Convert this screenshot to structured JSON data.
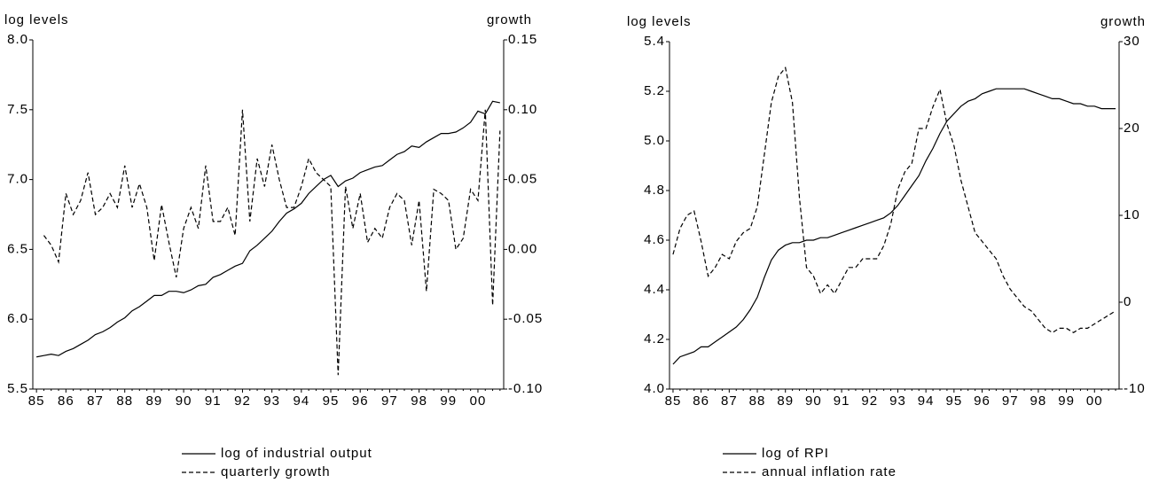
{
  "chart_data": [
    {
      "type": "line",
      "ylabel": "log levels",
      "y2label": "growth",
      "categories": [
        "85",
        null,
        null,
        null,
        "86",
        null,
        null,
        null,
        "87",
        null,
        null,
        null,
        "88",
        null,
        null,
        null,
        "89",
        null,
        null,
        null,
        "90",
        null,
        null,
        null,
        "91",
        null,
        null,
        null,
        "92",
        null,
        null,
        null,
        "93",
        null,
        null,
        null,
        "94",
        null,
        null,
        null,
        "95",
        null,
        null,
        null,
        "96",
        null,
        null,
        null,
        "97",
        null,
        null,
        null,
        "98",
        null,
        null,
        null,
        "99",
        null,
        null,
        null,
        "00",
        null,
        null,
        null
      ],
      "ylim": [
        5.5,
        8.0
      ],
      "yticks": [
        {
          "value": 5.5,
          "label": "5.5"
        },
        {
          "value": 6,
          "label": "6.0"
        },
        {
          "value": 6.5,
          "label": "6.5"
        },
        {
          "value": 7,
          "label": "7.0"
        },
        {
          "value": 7.5,
          "label": "7.5"
        },
        {
          "value": 8,
          "label": "8.0"
        }
      ],
      "y2lim": [
        -0.1,
        0.15
      ],
      "y2ticks": [
        {
          "value": -0.1,
          "label": "-0.10"
        },
        -0.05,
        {
          "value": 0,
          "label": "0.00"
        },
        0.05,
        {
          "value": 0.1,
          "label": "0.10"
        },
        0.15
      ],
      "series": [
        {
          "name": "log of industrial output",
          "color": "#000000",
          "line_style": "solid",
          "values": [
            5.73,
            5.74,
            5.75,
            5.74,
            5.77,
            5.79,
            5.82,
            5.85,
            5.89,
            5.91,
            5.94,
            5.98,
            6.01,
            6.06,
            6.09,
            6.13,
            6.17,
            6.17,
            6.2,
            6.2,
            6.19,
            6.21,
            6.24,
            6.25,
            6.3,
            6.32,
            6.35,
            6.38,
            6.4,
            6.49,
            6.53,
            6.58,
            6.63,
            6.7,
            6.76,
            6.79,
            6.83,
            6.9,
            6.95,
            7.0,
            7.03,
            6.95,
            6.99,
            7.01,
            7.05,
            7.07,
            7.09,
            7.1,
            7.14,
            7.18,
            7.2,
            7.24,
            7.23,
            7.27,
            7.3,
            7.33,
            7.33,
            7.34,
            7.37,
            7.41,
            7.49,
            7.47,
            7.56,
            7.55
          ]
        },
        {
          "name": "quarterly growth",
          "color": "#000000",
          "line_style": "dashed",
          "axis": "y2",
          "values": [
            null,
            0.01,
            0.003,
            -0.009,
            0.04,
            0.025,
            0.035,
            0.055,
            0.025,
            0.03,
            0.04,
            0.03,
            0.06,
            0.03,
            0.047,
            0.03,
            -0.008,
            0.032,
            0.005,
            -0.02,
            0.015,
            0.03,
            0.015,
            0.06,
            0.02,
            0.02,
            0.03,
            0.01,
            0.1,
            0.02,
            0.065,
            0.045,
            0.075,
            0.05,
            0.03,
            0.03,
            0.045,
            0.065,
            0.055,
            0.05,
            0.045,
            -0.09,
            0.045,
            0.015,
            0.04,
            0.005,
            0.015,
            0.008,
            0.03,
            0.04,
            0.035,
            0.003,
            0.035,
            -0.03,
            0.043,
            0.04,
            0.035,
            0.0,
            0.008,
            0.043,
            0.035,
            0.1,
            -0.04,
            0.085
          ]
        }
      ]
    },
    {
      "type": "line",
      "ylabel": "log levels",
      "y2label": "growth",
      "categories": [
        "85",
        null,
        null,
        null,
        "86",
        null,
        null,
        null,
        "87",
        null,
        null,
        null,
        "88",
        null,
        null,
        null,
        "89",
        null,
        null,
        null,
        "90",
        null,
        null,
        null,
        "91",
        null,
        null,
        null,
        "92",
        null,
        null,
        null,
        "93",
        null,
        null,
        null,
        "94",
        null,
        null,
        null,
        "95",
        null,
        null,
        null,
        "96",
        null,
        null,
        null,
        "97",
        null,
        null,
        null,
        "98",
        null,
        null,
        null,
        "99",
        null,
        null,
        null,
        "00",
        null,
        null,
        null
      ],
      "ylim": [
        4.0,
        5.4
      ],
      "yticks": [
        {
          "value": 4,
          "label": "4.0"
        },
        4.2,
        4.4,
        4.6,
        4.8,
        {
          "value": 5,
          "label": "5.0"
        },
        5.2,
        5.4
      ],
      "y2lim": [
        -10,
        30
      ],
      "y2ticks": [
        -10,
        0,
        10,
        20,
        30
      ],
      "series": [
        {
          "name": "log of RPI",
          "color": "#000000",
          "line_style": "solid",
          "values": [
            4.1,
            4.13,
            4.14,
            4.15,
            4.17,
            4.17,
            4.19,
            4.21,
            4.23,
            4.25,
            4.28,
            4.32,
            4.37,
            4.45,
            4.52,
            4.56,
            4.58,
            4.59,
            4.59,
            4.6,
            4.6,
            4.61,
            4.61,
            4.62,
            4.63,
            4.64,
            4.65,
            4.66,
            4.67,
            4.68,
            4.69,
            4.71,
            4.74,
            4.78,
            4.82,
            4.86,
            4.92,
            4.97,
            5.03,
            5.08,
            5.11,
            5.14,
            5.16,
            5.17,
            5.19,
            5.2,
            5.21,
            5.21,
            5.21,
            5.21,
            5.21,
            5.2,
            5.19,
            5.18,
            5.17,
            5.17,
            5.16,
            5.15,
            5.15,
            5.14,
            5.14,
            5.13,
            5.13,
            5.13
          ]
        },
        {
          "name": "annual inflation rate",
          "color": "#000000",
          "line_style": "dashed",
          "axis": "y2",
          "values": [
            5.5,
            8.5,
            10,
            10.5,
            7,
            3,
            4,
            5.5,
            5,
            7,
            8,
            8.5,
            11,
            17,
            23,
            26,
            27,
            23,
            12,
            4,
            3,
            1,
            2,
            1,
            2.5,
            4,
            4,
            5,
            5,
            5,
            6.5,
            9,
            13,
            15,
            16,
            20,
            20,
            22.5,
            24.5,
            20.5,
            18,
            14,
            11,
            8,
            7,
            6,
            5,
            3,
            1.5,
            0.5,
            -0.5,
            -1,
            -2,
            -3,
            -3.5,
            -3,
            -3,
            -3.5,
            -3,
            -3,
            -2.5,
            -2,
            -1.5,
            -1
          ]
        }
      ]
    }
  ]
}
